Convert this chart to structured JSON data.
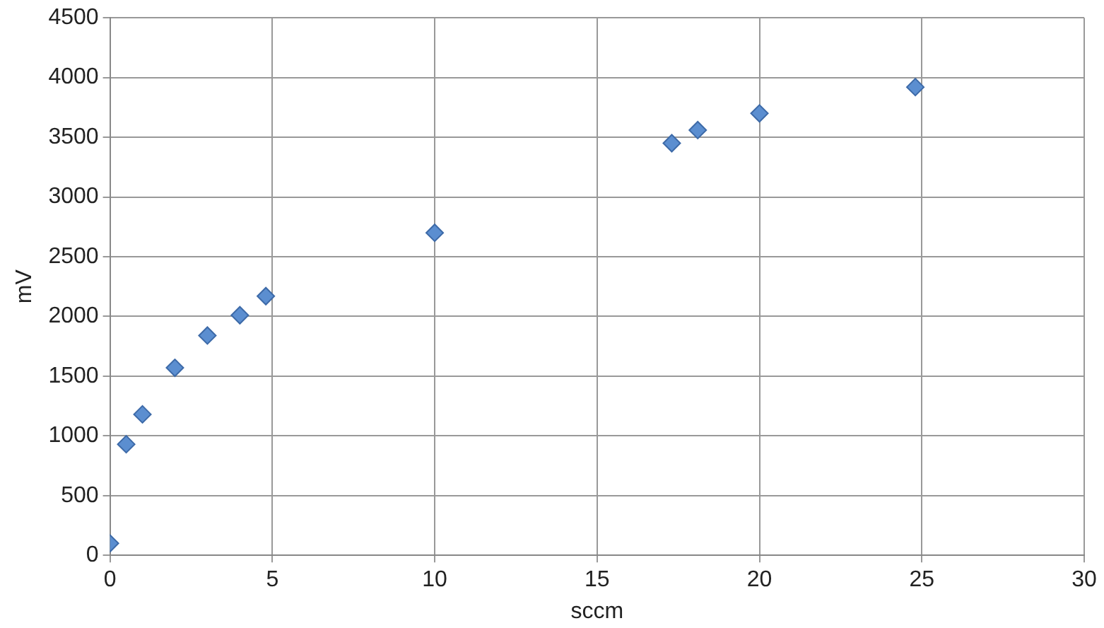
{
  "chart_data": {
    "type": "scatter",
    "xlabel": "sccm",
    "ylabel": "mV",
    "x": [
      0,
      0.5,
      1,
      2,
      3,
      4,
      4.8,
      10,
      17.3,
      18.1,
      20,
      24.8
    ],
    "values": [
      100,
      930,
      1180,
      1570,
      1840,
      2010,
      2170,
      2700,
      3450,
      3560,
      3700,
      3920
    ],
    "color": "#5b8ed0",
    "marker": "diamond",
    "grid": true,
    "legend": false,
    "xlim": [
      0,
      30
    ],
    "xticks": [
      0,
      5,
      10,
      15,
      20,
      25,
      30
    ],
    "ylim": [
      0,
      4500
    ],
    "yticks": [
      0,
      500,
      1000,
      1500,
      2000,
      2500,
      3000,
      3500,
      4000,
      4500
    ]
  }
}
